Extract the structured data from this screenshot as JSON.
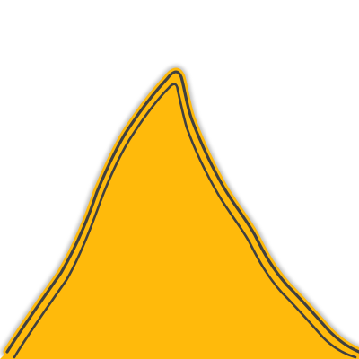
{
  "colors": {
    "background": "#ffffff",
    "fill": "#ffba0b",
    "inner_outline": "#404040",
    "outer_outline": "#ffba0b",
    "shadow": "#8c8c8c"
  },
  "shape": {
    "kind": "mountain-peak"
  }
}
